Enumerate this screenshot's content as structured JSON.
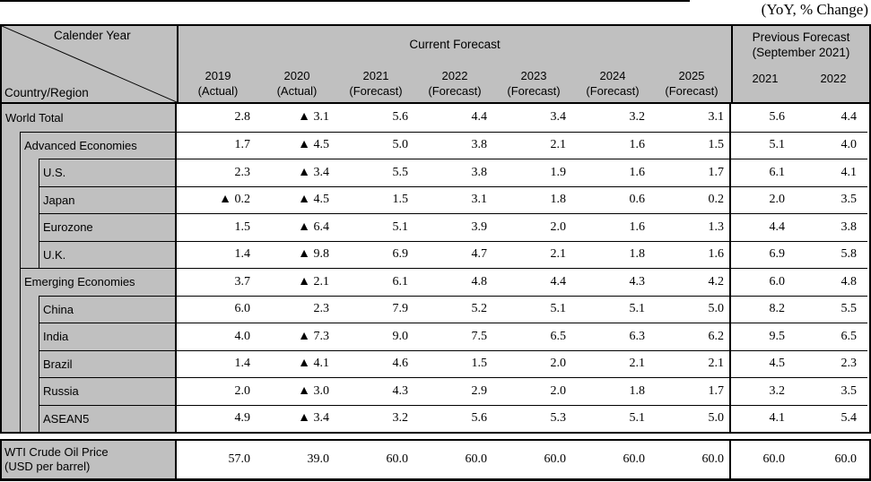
{
  "unit_note": "(YoY, % Change)",
  "header": {
    "corner": {
      "top": "Calender Year",
      "bottom": "Country/Region"
    },
    "current": {
      "title": "Current Forecast",
      "columns": [
        {
          "year": "2019",
          "status": "(Actual)"
        },
        {
          "year": "2020",
          "status": "(Actual)"
        },
        {
          "year": "2021",
          "status": "(Forecast)"
        },
        {
          "year": "2022",
          "status": "(Forecast)"
        },
        {
          "year": "2023",
          "status": "(Forecast)"
        },
        {
          "year": "2024",
          "status": "(Forecast)"
        },
        {
          "year": "2025",
          "status": "(Forecast)"
        }
      ]
    },
    "previous": {
      "title": "Previous Forecast",
      "subtitle": "(September 2021)",
      "columns": [
        "2021",
        "2022"
      ]
    }
  },
  "rows": [
    {
      "label": "World Total",
      "indent": 0,
      "topline": 0,
      "current": [
        "2.8",
        "▲ 3.1",
        "5.6",
        "4.4",
        "3.4",
        "3.2",
        "3.1"
      ],
      "previous": [
        "5.6",
        "4.4"
      ]
    },
    {
      "label": "Advanced Economies",
      "indent": 1,
      "topline": 1,
      "current": [
        "1.7",
        "▲ 4.5",
        "5.0",
        "3.8",
        "2.1",
        "1.6",
        "1.5"
      ],
      "previous": [
        "5.1",
        "4.0"
      ]
    },
    {
      "label": "U.S.",
      "indent": 2,
      "topline": 2,
      "current": [
        "2.3",
        "▲ 3.4",
        "5.5",
        "3.8",
        "1.9",
        "1.6",
        "1.7"
      ],
      "previous": [
        "6.1",
        "4.1"
      ]
    },
    {
      "label": "Japan",
      "indent": 2,
      "topline": 2,
      "current": [
        "▲ 0.2",
        "▲ 4.5",
        "1.5",
        "3.1",
        "1.8",
        "0.6",
        "0.2"
      ],
      "previous": [
        "2.0",
        "3.5"
      ]
    },
    {
      "label": "Eurozone",
      "indent": 2,
      "topline": 2,
      "current": [
        "1.5",
        "▲ 6.4",
        "5.1",
        "3.9",
        "2.0",
        "1.6",
        "1.3"
      ],
      "previous": [
        "4.4",
        "3.8"
      ]
    },
    {
      "label": "U.K.",
      "indent": 2,
      "topline": 2,
      "current": [
        "1.4",
        "▲ 9.8",
        "6.9",
        "4.7",
        "2.1",
        "1.8",
        "1.6"
      ],
      "previous": [
        "6.9",
        "5.8"
      ]
    },
    {
      "label": "Emerging Economies",
      "indent": 1,
      "topline": 1,
      "current": [
        "3.7",
        "▲ 2.1",
        "6.1",
        "4.8",
        "4.4",
        "4.3",
        "4.2"
      ],
      "previous": [
        "6.0",
        "4.8"
      ]
    },
    {
      "label": "China",
      "indent": 2,
      "topline": 2,
      "current": [
        "6.0",
        "2.3",
        "7.9",
        "5.2",
        "5.1",
        "5.1",
        "5.0"
      ],
      "previous": [
        "8.2",
        "5.5"
      ]
    },
    {
      "label": "India",
      "indent": 2,
      "topline": 2,
      "current": [
        "4.0",
        "▲ 7.3",
        "9.0",
        "7.5",
        "6.5",
        "6.3",
        "6.2"
      ],
      "previous": [
        "9.5",
        "6.5"
      ]
    },
    {
      "label": "Brazil",
      "indent": 2,
      "topline": 2,
      "current": [
        "1.4",
        "▲ 4.1",
        "4.6",
        "1.5",
        "2.0",
        "2.1",
        "2.1"
      ],
      "previous": [
        "4.5",
        "2.3"
      ]
    },
    {
      "label": "Russia",
      "indent": 2,
      "topline": 2,
      "current": [
        "2.0",
        "▲ 3.0",
        "4.3",
        "2.9",
        "2.0",
        "1.8",
        "1.7"
      ],
      "previous": [
        "3.2",
        "3.5"
      ]
    },
    {
      "label": "ASEAN5",
      "indent": 2,
      "topline": 2,
      "current": [
        "4.9",
        "▲ 3.4",
        "3.2",
        "5.6",
        "5.3",
        "5.1",
        "5.0"
      ],
      "previous": [
        "4.1",
        "5.4"
      ]
    }
  ],
  "footer_row": {
    "label_line1": "WTI Crude Oil Price",
    "label_line2": "(USD per barrel)",
    "current": [
      "57.0",
      "39.0",
      "60.0",
      "60.0",
      "60.0",
      "60.0",
      "60.0"
    ],
    "previous": [
      "60.0",
      "60.0"
    ]
  },
  "colors": {
    "header_bg": "#c0c0c0",
    "cell_bg": "#ffffff",
    "border": "#000000"
  },
  "chart_data": {
    "type": "table",
    "title": "(YoY, % Change)",
    "negative_marker": "▲",
    "columns": [
      "2019 (Actual)",
      "2020 (Actual)",
      "2021 (Forecast)",
      "2022 (Forecast)",
      "2023 (Forecast)",
      "2024 (Forecast)",
      "2025 (Forecast)",
      "Previous Forecast (September 2021) 2021",
      "Previous Forecast (September 2021) 2022"
    ],
    "rows": [
      {
        "region": "World Total",
        "values": [
          2.8,
          -3.1,
          5.6,
          4.4,
          3.4,
          3.2,
          3.1,
          5.6,
          4.4
        ]
      },
      {
        "region": "Advanced Economies",
        "values": [
          1.7,
          -4.5,
          5.0,
          3.8,
          2.1,
          1.6,
          1.5,
          5.1,
          4.0
        ]
      },
      {
        "region": "U.S.",
        "values": [
          2.3,
          -3.4,
          5.5,
          3.8,
          1.9,
          1.6,
          1.7,
          6.1,
          4.1
        ]
      },
      {
        "region": "Japan",
        "values": [
          -0.2,
          -4.5,
          1.5,
          3.1,
          1.8,
          0.6,
          0.2,
          2.0,
          3.5
        ]
      },
      {
        "region": "Eurozone",
        "values": [
          1.5,
          -6.4,
          5.1,
          3.9,
          2.0,
          1.6,
          1.3,
          4.4,
          3.8
        ]
      },
      {
        "region": "U.K.",
        "values": [
          1.4,
          -9.8,
          6.9,
          4.7,
          2.1,
          1.8,
          1.6,
          6.9,
          5.8
        ]
      },
      {
        "region": "Emerging Economies",
        "values": [
          3.7,
          -2.1,
          6.1,
          4.8,
          4.4,
          4.3,
          4.2,
          6.0,
          4.8
        ]
      },
      {
        "region": "China",
        "values": [
          6.0,
          2.3,
          7.9,
          5.2,
          5.1,
          5.1,
          5.0,
          8.2,
          5.5
        ]
      },
      {
        "region": "India",
        "values": [
          4.0,
          -7.3,
          9.0,
          7.5,
          6.5,
          6.3,
          6.2,
          9.5,
          6.5
        ]
      },
      {
        "region": "Brazil",
        "values": [
          1.4,
          -4.1,
          4.6,
          1.5,
          2.0,
          2.1,
          2.1,
          4.5,
          2.3
        ]
      },
      {
        "region": "Russia",
        "values": [
          2.0,
          -3.0,
          4.3,
          2.9,
          2.0,
          1.8,
          1.7,
          3.2,
          3.5
        ]
      },
      {
        "region": "ASEAN5",
        "values": [
          4.9,
          -3.4,
          3.2,
          5.6,
          5.3,
          5.1,
          5.0,
          4.1,
          5.4
        ]
      },
      {
        "region": "WTI Crude Oil Price (USD per barrel)",
        "values": [
          57.0,
          39.0,
          60.0,
          60.0,
          60.0,
          60.0,
          60.0,
          60.0,
          60.0
        ]
      }
    ]
  }
}
